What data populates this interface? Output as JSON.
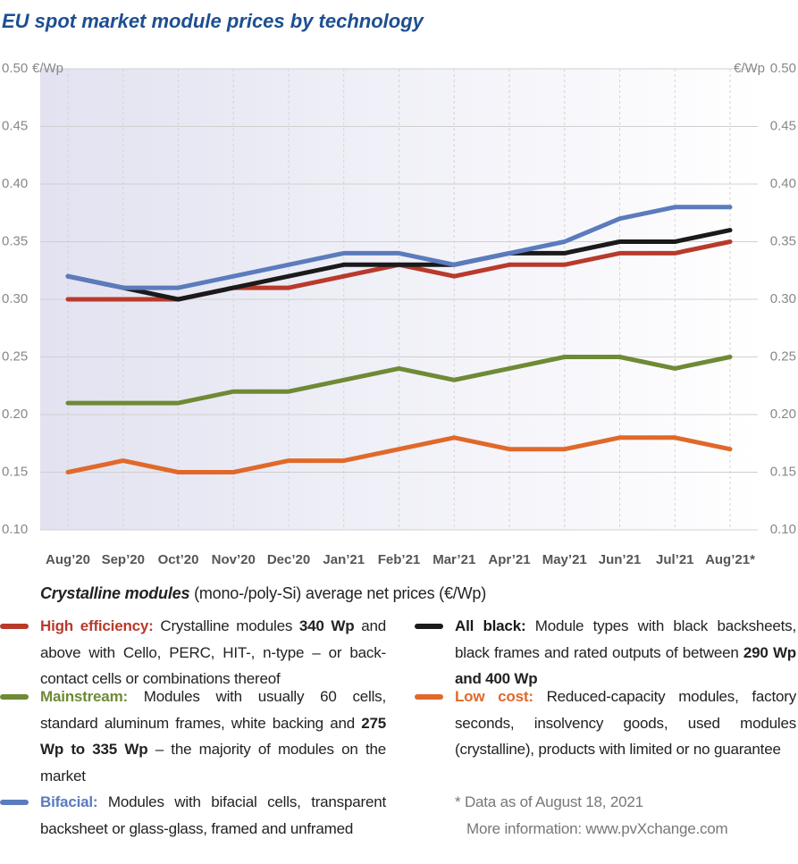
{
  "chart_data": {
    "type": "line",
    "title": "EU spot market module prices  by technology",
    "y_unit": "€/Wp",
    "categories": [
      "Aug’20",
      "Sep’20",
      "Oct’20",
      "Nov’20",
      "Dec’20",
      "Jan’21",
      "Feb’21",
      "Mar’21",
      "Apr’21",
      "May’21",
      "Jun’21",
      "Jul’21",
      "Aug’21*"
    ],
    "ylim": [
      0.1,
      0.5
    ],
    "yticks": [
      {
        "value": 0.1,
        "label": "0.10"
      },
      {
        "value": 0.15,
        "label": "0.15"
      },
      {
        "value": 0.2,
        "label": "0.20"
      },
      {
        "value": 0.25,
        "label": "0.25"
      },
      {
        "value": 0.3,
        "label": "0.30"
      },
      {
        "value": 0.35,
        "label": "0.35"
      },
      {
        "value": 0.4,
        "label": "0.40"
      },
      {
        "value": 0.45,
        "label": "0.45"
      },
      {
        "value": 0.5,
        "label": "0.50"
      }
    ],
    "grid": true,
    "series": [
      {
        "name": "High efficiency:",
        "color": "#b83a2b",
        "values": [
          0.3,
          0.3,
          0.3,
          0.31,
          0.31,
          0.32,
          0.33,
          0.32,
          0.33,
          0.33,
          0.34,
          0.34,
          0.35
        ],
        "description": [
          {
            "text": " Crystalline modules "
          },
          {
            "text": "340 Wp",
            "bold": true
          },
          {
            "text": " and above with Cello, PERC, HIT-, n-type – or back-contact cells or combinations thereof"
          }
        ]
      },
      {
        "name": "Mainstream:",
        "color": "#6f8a35",
        "values": [
          0.21,
          0.21,
          0.21,
          0.22,
          0.22,
          0.23,
          0.24,
          0.23,
          0.24,
          0.25,
          0.25,
          0.24,
          0.25
        ],
        "description": [
          {
            "text": " Modules with usually 60 cells, standard aluminum frames, white backing and "
          },
          {
            "text": "275 Wp to 335 Wp",
            "bold": true
          },
          {
            "text": " – the majority of modules on the market"
          }
        ]
      },
      {
        "name": "Bifacial:",
        "color": "#5b7bbd",
        "values": [
          0.32,
          0.31,
          0.31,
          0.32,
          0.33,
          0.34,
          0.34,
          0.33,
          0.34,
          0.35,
          0.37,
          0.38,
          0.38
        ],
        "description": [
          {
            "text": " Modules with bifacial cells, transparent backsheet or glass-glass, framed and unframed"
          }
        ]
      },
      {
        "name": "All black:",
        "color": "#1a1a1a",
        "values": [
          0.32,
          0.31,
          0.3,
          0.31,
          0.32,
          0.33,
          0.33,
          0.33,
          0.34,
          0.34,
          0.35,
          0.35,
          0.36
        ],
        "description": [
          {
            "text": " Module types with black backsheets, black frames and rated outputs of between "
          },
          {
            "text": "290 Wp and 400 Wp",
            "bold": true
          }
        ]
      },
      {
        "name": "Low cost:",
        "color": "#e0692a",
        "values": [
          0.15,
          0.16,
          0.15,
          0.15,
          0.16,
          0.16,
          0.17,
          0.18,
          0.17,
          0.17,
          0.18,
          0.18,
          0.17
        ],
        "description": [
          {
            "text": " Reduced-capacity modules, factory seconds, insolvency goods, used modules (crystalline), products with limited or no guarantee"
          }
        ]
      }
    ],
    "legend_title": "Crystalline modules",
    "legend_subtitle": " (mono-/poly-Si) average net prices (€/Wp)",
    "footnotes": [
      "* Data as of August 18, 2021",
      "More information: www.pvXchange.com"
    ]
  }
}
